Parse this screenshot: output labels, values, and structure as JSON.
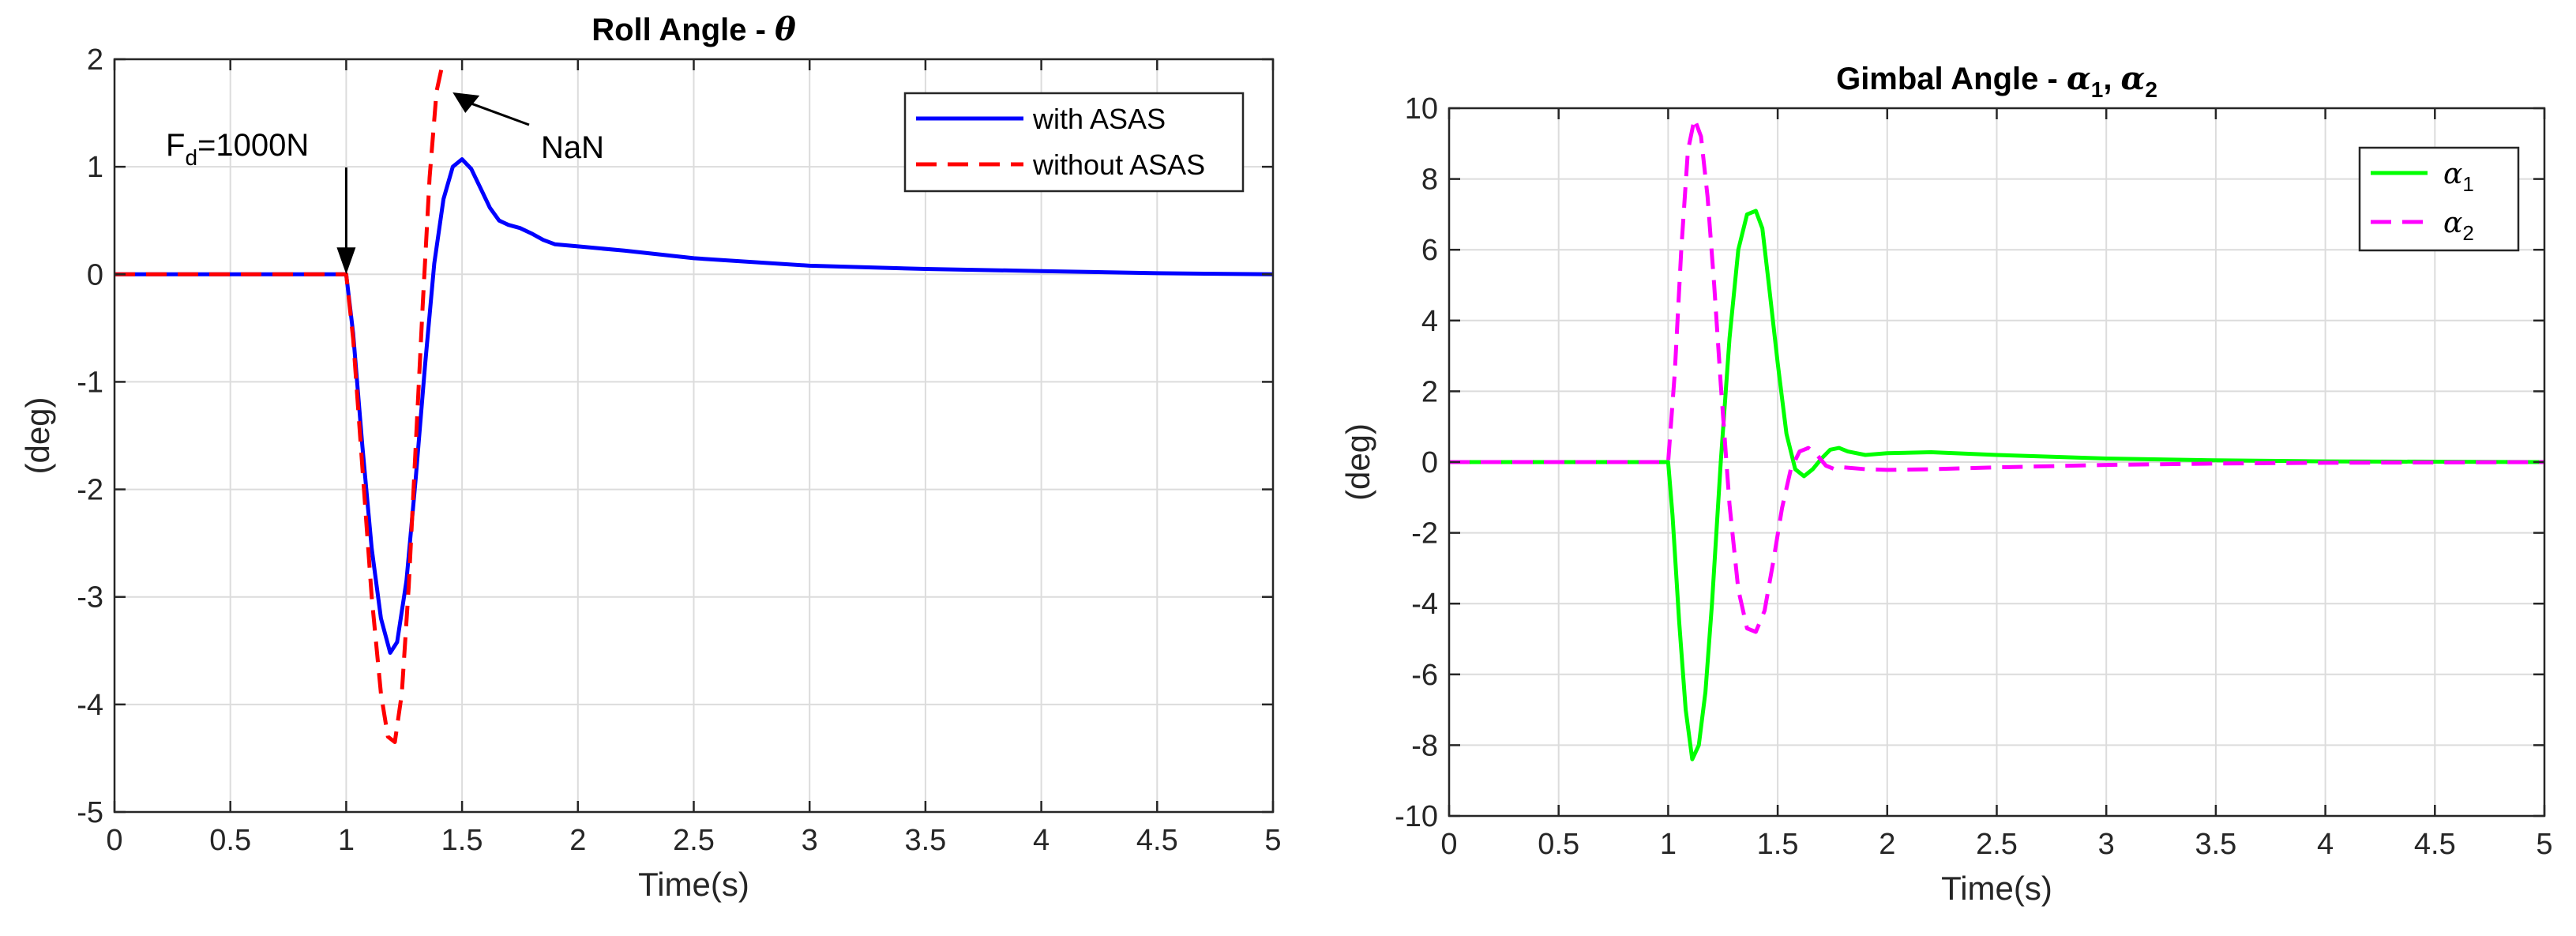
{
  "chart_data": [
    {
      "type": "line",
      "title": "Roll Angle - ",
      "title_symbol": "θ",
      "xlabel": "Time(s)",
      "ylabel": "(deg)",
      "xlim": [
        0,
        5
      ],
      "ylim": [
        -5,
        2
      ],
      "xticks": [
        0,
        0.5,
        1,
        1.5,
        2,
        2.5,
        3,
        3.5,
        4,
        4.5,
        5
      ],
      "xtick_labels": [
        "0",
        "0.5",
        "1",
        "1.5",
        "2",
        "2.5",
        "3",
        "3.5",
        "4",
        "4.5",
        "5"
      ],
      "yticks": [
        -5,
        -4,
        -3,
        -2,
        -1,
        0,
        1,
        2
      ],
      "ytick_labels": [
        "-5",
        "-4",
        "-3",
        "-2",
        "-1",
        "0",
        "1",
        "2"
      ],
      "grid": true,
      "legend": "top-right",
      "series": [
        {
          "name": "with ASAS",
          "color": "#0000ff",
          "style": "solid",
          "x": [
            0,
            1.0,
            1.03,
            1.07,
            1.11,
            1.15,
            1.19,
            1.22,
            1.26,
            1.3,
            1.34,
            1.38,
            1.42,
            1.46,
            1.5,
            1.54,
            1.58,
            1.62,
            1.66,
            1.7,
            1.75,
            1.8,
            1.85,
            1.9,
            2.0,
            2.2,
            2.5,
            3.0,
            3.5,
            4.0,
            4.5,
            5.0
          ],
          "values": [
            0,
            0,
            -0.55,
            -1.6,
            -2.55,
            -3.2,
            -3.52,
            -3.42,
            -2.85,
            -1.9,
            -0.85,
            0.1,
            0.7,
            1.0,
            1.07,
            0.98,
            0.8,
            0.62,
            0.5,
            0.46,
            0.43,
            0.38,
            0.32,
            0.28,
            0.26,
            0.22,
            0.15,
            0.08,
            0.05,
            0.03,
            0.01,
            0.0
          ]
        },
        {
          "name": "without ASAS",
          "color": "#ff0000",
          "style": "dashed",
          "x": [
            0,
            1.0,
            1.03,
            1.07,
            1.11,
            1.15,
            1.18,
            1.21,
            1.24,
            1.27,
            1.3,
            1.33,
            1.36,
            1.39,
            1.41
          ],
          "values": [
            0,
            0,
            -0.6,
            -1.8,
            -3.0,
            -3.9,
            -4.3,
            -4.35,
            -3.9,
            -2.9,
            -1.6,
            -0.3,
            0.9,
            1.7,
            1.9
          ]
        }
      ],
      "annotations": [
        {
          "text": "F",
          "subscript": "d",
          "suffix": "=1000N",
          "arrow_to": [
            1.0,
            0.0
          ]
        },
        {
          "text": "NaN",
          "arrow_to": [
            1.48,
            1.75
          ]
        }
      ]
    },
    {
      "type": "line",
      "title": "Gimbal Angle - ",
      "title_symbols": [
        "α",
        "1",
        ", ",
        "α",
        "2"
      ],
      "xlabel": "Time(s)",
      "ylabel": "(deg)",
      "xlim": [
        0,
        5
      ],
      "ylim": [
        -10,
        10
      ],
      "xticks": [
        0,
        0.5,
        1,
        1.5,
        2,
        2.5,
        3,
        3.5,
        4,
        4.5,
        5
      ],
      "xtick_labels": [
        "0",
        "0.5",
        "1",
        "1.5",
        "2",
        "2.5",
        "3",
        "3.5",
        "4",
        "4.5",
        "5"
      ],
      "yticks": [
        -10,
        -8,
        -6,
        -4,
        -2,
        0,
        2,
        4,
        6,
        8,
        10
      ],
      "ytick_labels": [
        "-10",
        "-8",
        "-6",
        "-4",
        "-2",
        "0",
        "2",
        "4",
        "6",
        "8",
        "10"
      ],
      "grid": true,
      "legend": "top-right",
      "series": [
        {
          "name": "α",
          "subscript": "1",
          "color": "#00ff00",
          "style": "solid",
          "x": [
            0,
            1.0,
            1.02,
            1.05,
            1.08,
            1.11,
            1.14,
            1.17,
            1.2,
            1.24,
            1.28,
            1.32,
            1.36,
            1.4,
            1.43,
            1.46,
            1.5,
            1.54,
            1.58,
            1.62,
            1.66,
            1.7,
            1.74,
            1.78,
            1.82,
            1.9,
            2.0,
            2.2,
            2.5,
            3.0,
            3.5,
            4.0,
            5.0
          ],
          "values": [
            0,
            0,
            -1.5,
            -4.5,
            -7.0,
            -8.4,
            -8.0,
            -6.5,
            -4.0,
            0.0,
            3.5,
            6.0,
            7.0,
            7.1,
            6.6,
            5.0,
            2.8,
            0.8,
            -0.2,
            -0.4,
            -0.2,
            0.1,
            0.35,
            0.4,
            0.3,
            0.2,
            0.25,
            0.28,
            0.2,
            0.1,
            0.05,
            0.02,
            0.0
          ]
        },
        {
          "name": "α",
          "subscript": "2",
          "color": "#ff00ff",
          "style": "dashed",
          "x": [
            0,
            1.0,
            1.03,
            1.06,
            1.09,
            1.12,
            1.15,
            1.18,
            1.21,
            1.24,
            1.28,
            1.32,
            1.36,
            1.4,
            1.44,
            1.48,
            1.52,
            1.56,
            1.6,
            1.64,
            1.68,
            1.72,
            1.76,
            1.8,
            1.9,
            2.0,
            2.2,
            2.5,
            3.0,
            3.5,
            4.0,
            5.0
          ],
          "values": [
            0,
            0,
            2.5,
            6.0,
            8.8,
            9.7,
            9.2,
            7.5,
            5.0,
            2.2,
            -1.2,
            -3.6,
            -4.7,
            -4.8,
            -4.2,
            -2.8,
            -1.3,
            -0.2,
            0.3,
            0.4,
            0.2,
            -0.1,
            -0.2,
            -0.15,
            -0.2,
            -0.22,
            -0.2,
            -0.15,
            -0.08,
            -0.04,
            -0.02,
            0.0
          ]
        }
      ]
    }
  ]
}
